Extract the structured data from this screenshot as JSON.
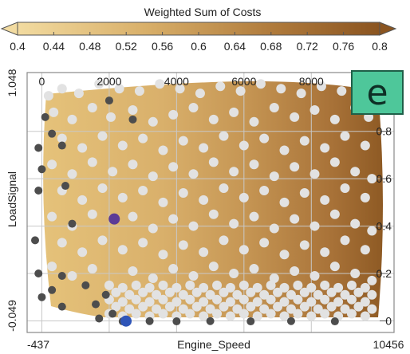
{
  "panel_badge": "e",
  "colorbar": {
    "title": "Weighted Sum of Costs",
    "ticks": [
      "0.4",
      "0.44",
      "0.48",
      "0.52",
      "0.56",
      "0.6",
      "0.64",
      "0.68",
      "0.72",
      "0.76",
      "0.8"
    ],
    "color_low": "#f2dba0",
    "color_high": "#8a5420"
  },
  "chart_data": {
    "type": "scatter",
    "xlabel": "Engine_Speed",
    "ylabel": "LoadSignal",
    "xlim": [
      -437,
      10456
    ],
    "ylim": [
      -0.049,
      1.048
    ],
    "x_range_labels": [
      "-437",
      "10456"
    ],
    "y_range_labels": [
      "-0.049",
      "1.048"
    ],
    "x_ticks": [
      "0",
      "2000",
      "4000",
      "6000",
      "8000"
    ],
    "y_ticks": [
      "0",
      "0.2",
      "0.4",
      "0.6",
      "0.8"
    ],
    "grid": true,
    "background": "filled contour of Weighted Sum of Costs (0.4 light, 0.8 dark), increasing toward high Engine_Speed",
    "series": [
      {
        "color": "#e2e2e2",
        "style": "light grey points (interior)",
        "points": [
          [
            200,
            0.95
          ],
          [
            600,
            0.98
          ],
          [
            1100,
            0.96
          ],
          [
            1700,
            1.0
          ],
          [
            2300,
            0.98
          ],
          [
            2900,
            0.97
          ],
          [
            3500,
            1.0
          ],
          [
            4100,
            0.98
          ],
          [
            4700,
            0.96
          ],
          [
            5300,
            0.99
          ],
          [
            5900,
            0.97
          ],
          [
            6500,
            1.0
          ],
          [
            7100,
            0.98
          ],
          [
            7700,
            0.96
          ],
          [
            8300,
            0.99
          ],
          [
            8900,
            0.97
          ],
          [
            350,
            0.88
          ],
          [
            900,
            0.85
          ],
          [
            1500,
            0.9
          ],
          [
            2050,
            0.86
          ],
          [
            2700,
            0.89
          ],
          [
            3300,
            0.84
          ],
          [
            3900,
            0.87
          ],
          [
            4500,
            0.9
          ],
          [
            5100,
            0.85
          ],
          [
            5700,
            0.88
          ],
          [
            6300,
            0.84
          ],
          [
            6900,
            0.9
          ],
          [
            7500,
            0.86
          ],
          [
            8100,
            0.89
          ],
          [
            8700,
            0.85
          ],
          [
            9300,
            0.9
          ],
          [
            9700,
            0.86
          ],
          [
            600,
            0.77
          ],
          [
            1200,
            0.73
          ],
          [
            1800,
            0.78
          ],
          [
            2400,
            0.74
          ],
          [
            3000,
            0.77
          ],
          [
            3600,
            0.72
          ],
          [
            4200,
            0.76
          ],
          [
            4800,
            0.73
          ],
          [
            5400,
            0.78
          ],
          [
            6000,
            0.74
          ],
          [
            6600,
            0.77
          ],
          [
            7200,
            0.72
          ],
          [
            7800,
            0.76
          ],
          [
            8400,
            0.73
          ],
          [
            9000,
            0.78
          ],
          [
            9600,
            0.74
          ],
          [
            300,
            0.66
          ],
          [
            900,
            0.62
          ],
          [
            1500,
            0.67
          ],
          [
            2100,
            0.63
          ],
          [
            2700,
            0.66
          ],
          [
            3300,
            0.61
          ],
          [
            3900,
            0.65
          ],
          [
            4500,
            0.62
          ],
          [
            5100,
            0.67
          ],
          [
            5700,
            0.63
          ],
          [
            6300,
            0.66
          ],
          [
            6900,
            0.61
          ],
          [
            7500,
            0.65
          ],
          [
            8100,
            0.62
          ],
          [
            8700,
            0.67
          ],
          [
            9300,
            0.63
          ],
          [
            9800,
            0.6
          ],
          [
            600,
            0.55
          ],
          [
            1200,
            0.51
          ],
          [
            1800,
            0.56
          ],
          [
            2400,
            0.52
          ],
          [
            3000,
            0.55
          ],
          [
            3600,
            0.5
          ],
          [
            4200,
            0.54
          ],
          [
            4800,
            0.51
          ],
          [
            5400,
            0.56
          ],
          [
            6000,
            0.52
          ],
          [
            6600,
            0.55
          ],
          [
            7200,
            0.5
          ],
          [
            7800,
            0.54
          ],
          [
            8400,
            0.51
          ],
          [
            9000,
            0.56
          ],
          [
            9600,
            0.52
          ],
          [
            300,
            0.44
          ],
          [
            900,
            0.4
          ],
          [
            1500,
            0.45
          ],
          [
            2700,
            0.44
          ],
          [
            3300,
            0.39
          ],
          [
            3900,
            0.43
          ],
          [
            4500,
            0.4
          ],
          [
            5100,
            0.45
          ],
          [
            5700,
            0.41
          ],
          [
            6300,
            0.44
          ],
          [
            6900,
            0.39
          ],
          [
            7500,
            0.43
          ],
          [
            8100,
            0.4
          ],
          [
            8700,
            0.45
          ],
          [
            9300,
            0.41
          ],
          [
            9800,
            0.38
          ],
          [
            600,
            0.33
          ],
          [
            1200,
            0.29
          ],
          [
            1800,
            0.34
          ],
          [
            2400,
            0.3
          ],
          [
            3000,
            0.33
          ],
          [
            3600,
            0.28
          ],
          [
            4200,
            0.32
          ],
          [
            4800,
            0.29
          ],
          [
            5400,
            0.34
          ],
          [
            6000,
            0.3
          ],
          [
            6600,
            0.33
          ],
          [
            7200,
            0.28
          ],
          [
            7800,
            0.32
          ],
          [
            8400,
            0.29
          ],
          [
            9000,
            0.34
          ],
          [
            9600,
            0.3
          ],
          [
            300,
            0.23
          ],
          [
            900,
            0.19
          ],
          [
            1500,
            0.22
          ],
          [
            2700,
            0.21
          ],
          [
            3300,
            0.18
          ],
          [
            3900,
            0.22
          ],
          [
            4500,
            0.19
          ],
          [
            5100,
            0.23
          ],
          [
            5700,
            0.2
          ],
          [
            6300,
            0.22
          ],
          [
            6900,
            0.18
          ],
          [
            7500,
            0.21
          ],
          [
            8100,
            0.19
          ],
          [
            8700,
            0.23
          ],
          [
            9300,
            0.2
          ],
          [
            9800,
            0.17
          ],
          [
            2000,
            0.15
          ],
          [
            2400,
            0.14
          ],
          [
            2800,
            0.15
          ],
          [
            3200,
            0.14
          ],
          [
            3600,
            0.15
          ],
          [
            4000,
            0.14
          ],
          [
            4400,
            0.15
          ],
          [
            4800,
            0.14
          ],
          [
            5200,
            0.15
          ],
          [
            5600,
            0.14
          ],
          [
            6000,
            0.15
          ],
          [
            6400,
            0.14
          ],
          [
            6800,
            0.15
          ],
          [
            7200,
            0.14
          ],
          [
            7600,
            0.15
          ],
          [
            8000,
            0.14
          ],
          [
            8400,
            0.15
          ],
          [
            8800,
            0.14
          ],
          [
            9200,
            0.15
          ],
          [
            9600,
            0.14
          ],
          [
            2200,
            0.12
          ],
          [
            2600,
            0.11
          ],
          [
            3000,
            0.12
          ],
          [
            3400,
            0.11
          ],
          [
            3800,
            0.12
          ],
          [
            4200,
            0.11
          ],
          [
            4600,
            0.12
          ],
          [
            5000,
            0.11
          ],
          [
            5400,
            0.12
          ],
          [
            5800,
            0.11
          ],
          [
            6200,
            0.12
          ],
          [
            6600,
            0.11
          ],
          [
            7000,
            0.12
          ],
          [
            7400,
            0.11
          ],
          [
            7800,
            0.12
          ],
          [
            8200,
            0.11
          ],
          [
            8600,
            0.12
          ],
          [
            9000,
            0.11
          ],
          [
            9400,
            0.12
          ],
          [
            9800,
            0.11
          ],
          [
            2000,
            0.09
          ],
          [
            2400,
            0.08
          ],
          [
            2800,
            0.09
          ],
          [
            3200,
            0.08
          ],
          [
            3600,
            0.09
          ],
          [
            4000,
            0.08
          ],
          [
            4400,
            0.09
          ],
          [
            4800,
            0.08
          ],
          [
            5200,
            0.09
          ],
          [
            5600,
            0.08
          ],
          [
            6000,
            0.09
          ],
          [
            6400,
            0.08
          ],
          [
            6800,
            0.09
          ],
          [
            7200,
            0.08
          ],
          [
            7600,
            0.09
          ],
          [
            8000,
            0.08
          ],
          [
            8400,
            0.09
          ],
          [
            8800,
            0.08
          ],
          [
            9200,
            0.09
          ],
          [
            9600,
            0.08
          ],
          [
            2200,
            0.06
          ],
          [
            2600,
            0.05
          ],
          [
            3000,
            0.06
          ],
          [
            3400,
            0.05
          ],
          [
            3800,
            0.06
          ],
          [
            4200,
            0.05
          ],
          [
            4600,
            0.06
          ],
          [
            5000,
            0.05
          ],
          [
            5400,
            0.06
          ],
          [
            5800,
            0.05
          ],
          [
            6200,
            0.06
          ],
          [
            6600,
            0.05
          ],
          [
            7000,
            0.06
          ],
          [
            7400,
            0.05
          ],
          [
            7800,
            0.06
          ],
          [
            8200,
            0.05
          ],
          [
            8600,
            0.06
          ],
          [
            9000,
            0.05
          ],
          [
            9400,
            0.06
          ],
          [
            9800,
            0.05
          ],
          [
            2000,
            0.03
          ],
          [
            2400,
            0.02
          ],
          [
            2800,
            0.03
          ],
          [
            3200,
            0.02
          ],
          [
            3600,
            0.03
          ],
          [
            4000,
            0.02
          ],
          [
            4400,
            0.03
          ],
          [
            4800,
            0.02
          ],
          [
            5200,
            0.03
          ],
          [
            5600,
            0.02
          ],
          [
            6000,
            0.03
          ],
          [
            6400,
            0.02
          ],
          [
            6800,
            0.03
          ],
          [
            7200,
            0.02
          ],
          [
            7600,
            0.03
          ],
          [
            8000,
            0.02
          ],
          [
            8400,
            0.03
          ],
          [
            8800,
            0.02
          ],
          [
            9200,
            0.03
          ],
          [
            9600,
            0.02
          ]
        ]
      },
      {
        "color": "#4d4d4d",
        "style": "dark grey points (edge)",
        "points": [
          [
            2000,
            0.93
          ],
          [
            -100,
            0.73
          ],
          [
            600,
            0.74
          ],
          [
            0,
            0.64
          ],
          [
            700,
            0.57
          ],
          [
            -100,
            0.55
          ],
          [
            900,
            0.41
          ],
          [
            -200,
            0.34
          ],
          [
            -100,
            0.2
          ],
          [
            600,
            0.19
          ],
          [
            0,
            0.1
          ],
          [
            1300,
            0.15
          ],
          [
            1900,
            0.11
          ],
          [
            1600,
            0.07
          ],
          [
            600,
            0.06
          ],
          [
            300,
            0.13
          ],
          [
            2100,
            0.03
          ],
          [
            2400,
            -0.002
          ],
          [
            3200,
            -0.001
          ],
          [
            4000,
            -0.002
          ],
          [
            5000,
            -0.001
          ],
          [
            6200,
            -0.002
          ],
          [
            7400,
            -0.001
          ],
          [
            8700,
            -0.002
          ],
          [
            100,
            0.86
          ],
          [
            300,
            0.79
          ],
          [
            1700,
            0.01
          ],
          [
            2700,
            0.85
          ]
        ]
      },
      {
        "color": "#5b3a96",
        "style": "highlighted purple point",
        "points": [
          [
            2150,
            0.43
          ]
        ]
      },
      {
        "color": "#2f55b8",
        "style": "highlighted blue point",
        "points": [
          [
            2500,
            -0.001
          ]
        ]
      }
    ]
  }
}
